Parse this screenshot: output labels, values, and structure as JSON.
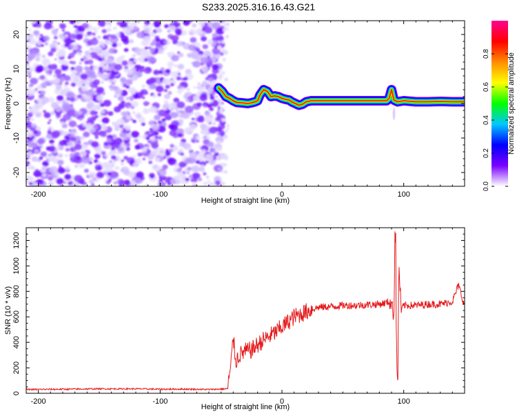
{
  "title": "S233.2025.316.16.43.G21",
  "chart_data": [
    {
      "type": "heatmap",
      "name": "spectrogram",
      "xlabel": "Height of straight line (km)",
      "ylabel": "Frequency (Hz)",
      "xlim": [
        -210,
        150
      ],
      "ylim": [
        -24,
        24
      ],
      "xticks": [
        -200,
        -100,
        0,
        100
      ],
      "yticks": [
        -20,
        -10,
        0,
        10,
        20
      ],
      "noise_region_x": [
        -210,
        -52
      ],
      "ridge": [
        [
          -52,
          4.5
        ],
        [
          -49,
          3.5
        ],
        [
          -46,
          2.0
        ],
        [
          -43,
          1.5
        ],
        [
          -40,
          0.8
        ],
        [
          -37,
          0.3
        ],
        [
          -33,
          0.2
        ],
        [
          -28,
          0.0
        ],
        [
          -25,
          0.2
        ],
        [
          -22,
          0.5
        ],
        [
          -20,
          0.8
        ],
        [
          -18,
          2.5
        ],
        [
          -15,
          4.0
        ],
        [
          -12,
          3.5
        ],
        [
          -9,
          2.0
        ],
        [
          -6,
          2.2
        ],
        [
          -3,
          2.0
        ],
        [
          0,
          1.5
        ],
        [
          3,
          1.2
        ],
        [
          6,
          1.0
        ],
        [
          8,
          0.5
        ],
        [
          11,
          0.0
        ],
        [
          14,
          -0.5
        ],
        [
          17,
          -0.2
        ],
        [
          20,
          0.5
        ],
        [
          24,
          0.8
        ],
        [
          30,
          0.8
        ],
        [
          40,
          0.8
        ],
        [
          50,
          0.8
        ],
        [
          60,
          0.8
        ],
        [
          70,
          0.8
        ],
        [
          80,
          0.8
        ],
        [
          86,
          0.8
        ],
        [
          88,
          1.5
        ],
        [
          90,
          4.0
        ],
        [
          92,
          1.0
        ],
        [
          95,
          0.5
        ],
        [
          100,
          0.8
        ],
        [
          110,
          0.5
        ],
        [
          120,
          0.5
        ],
        [
          130,
          0.6
        ],
        [
          140,
          0.5
        ],
        [
          150,
          0.5
        ]
      ],
      "colorbar": {
        "label": "Normalized spectral amplitude",
        "min": 0.0,
        "max": 1.0,
        "ticks": [
          "0.0",
          "0.2",
          "0.4",
          "0.6",
          "0.8"
        ],
        "tick_values": [
          0.0,
          0.2,
          0.4,
          0.6,
          0.8
        ],
        "stops": [
          "#ffffff",
          "#7a00ff",
          "#0000ff",
          "#00c8ff",
          "#00ff00",
          "#ffff00",
          "#ff8c00",
          "#ff0000",
          "#ff0090"
        ]
      }
    },
    {
      "type": "line",
      "name": "snr",
      "xlabel": "Height of straight line (km)",
      "ylabel": "SNR (10 * v/v)",
      "xlim": [
        -210,
        150
      ],
      "ylim": [
        0,
        1300
      ],
      "xticks": [
        -200,
        -100,
        0,
        100
      ],
      "yticks": [
        0,
        200,
        400,
        600,
        800,
        1000,
        1200
      ],
      "color": "#e41a1c",
      "series": [
        {
          "name": "SNR",
          "points": [
            [
              -210,
              30
            ],
            [
              -180,
              32
            ],
            [
              -150,
              35
            ],
            [
              -120,
              35
            ],
            [
              -100,
              32
            ],
            [
              -80,
              33
            ],
            [
              -60,
              30
            ],
            [
              -45,
              35
            ],
            [
              -42,
              200
            ],
            [
              -40,
              450
            ],
            [
              -38,
              250
            ],
            [
              -35,
              300
            ],
            [
              -30,
              330
            ],
            [
              -25,
              340
            ],
            [
              -20,
              380
            ],
            [
              -15,
              420
            ],
            [
              -10,
              450
            ],
            [
              -5,
              480
            ],
            [
              0,
              520
            ],
            [
              5,
              560
            ],
            [
              10,
              600
            ],
            [
              15,
              620
            ],
            [
              20,
              640
            ],
            [
              25,
              660
            ],
            [
              30,
              675
            ],
            [
              40,
              680
            ],
            [
              50,
              690
            ],
            [
              60,
              690
            ],
            [
              70,
              695
            ],
            [
              80,
              700
            ],
            [
              85,
              710
            ],
            [
              88,
              720
            ],
            [
              90,
              700
            ],
            [
              92,
              600
            ],
            [
              93,
              1280
            ],
            [
              94,
              400
            ],
            [
              95,
              70
            ],
            [
              96,
              1000
            ],
            [
              98,
              650
            ],
            [
              100,
              690
            ],
            [
              110,
              690
            ],
            [
              120,
              700
            ],
            [
              130,
              700
            ],
            [
              140,
              720
            ],
            [
              145,
              850
            ],
            [
              150,
              680
            ]
          ]
        }
      ]
    }
  ]
}
